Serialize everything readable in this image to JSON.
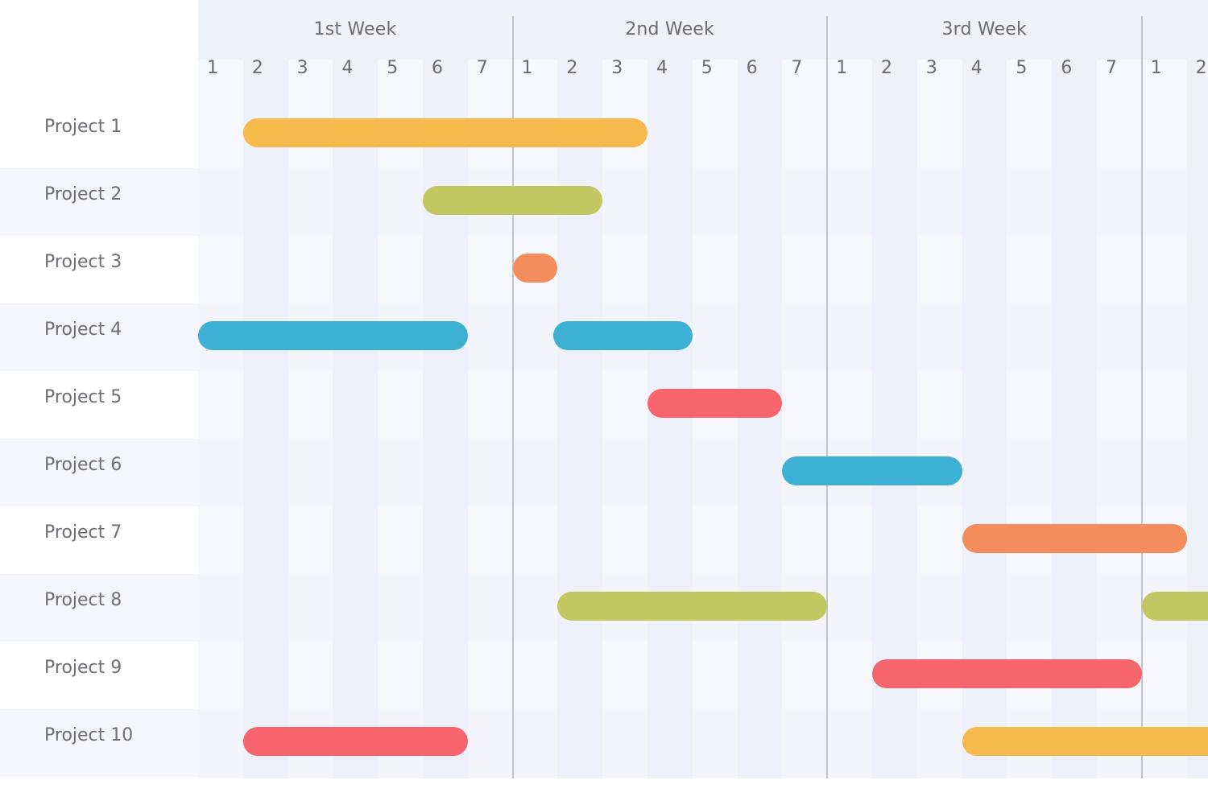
{
  "chart_data": {
    "type": "gantt",
    "title": "",
    "weeks": [
      "1st Week",
      "2nd Week",
      "3rd Week",
      ""
    ],
    "days": [
      "1",
      "2",
      "3",
      "4",
      "5",
      "6",
      "7",
      "1",
      "2",
      "3",
      "4",
      "5",
      "6",
      "7",
      "1",
      "2",
      "3",
      "4",
      "5",
      "6",
      "7",
      "1",
      "2"
    ],
    "projects": [
      "Project 1",
      "Project 2",
      "Project 3",
      "Project 4",
      "Project 5",
      "Project 6",
      "Project 7",
      "Project 8",
      "Project 9",
      "Project 10"
    ],
    "bars": [
      {
        "project": "Project 1",
        "start": 1,
        "end": 10,
        "color": "#f5b94c"
      },
      {
        "project": "Project 2",
        "start": 5,
        "end": 9,
        "color": "#c1c862"
      },
      {
        "project": "Project 3",
        "start": 7,
        "end": 8,
        "color": "#f48c5c"
      },
      {
        "project": "Project 4",
        "start": 0,
        "end": 6,
        "color": "#3cb1d3"
      },
      {
        "project": "Project 4",
        "start": 7.9,
        "end": 11,
        "color": "#3cb1d3"
      },
      {
        "project": "Project 5",
        "start": 10,
        "end": 13,
        "color": "#f6646e"
      },
      {
        "project": "Project 6",
        "start": 13,
        "end": 17,
        "color": "#3cb1d3"
      },
      {
        "project": "Project 7",
        "start": 17,
        "end": 22,
        "color": "#f48c5c"
      },
      {
        "project": "Project 8",
        "start": 8,
        "end": 14,
        "color": "#c1c862"
      },
      {
        "project": "Project 8",
        "start": 21,
        "end": 24,
        "color": "#c1c862"
      },
      {
        "project": "Project 9",
        "start": 15,
        "end": 21,
        "color": "#f6646e"
      },
      {
        "project": "Project 10",
        "start": 1,
        "end": 6,
        "color": "#f6646e"
      },
      {
        "project": "Project 10",
        "start": 17,
        "end": 24,
        "color": "#f5b94c"
      }
    ],
    "xlabel": "",
    "ylabel": "",
    "grid": true
  },
  "colors": {
    "yellow": "#f5b94c",
    "olive": "#c1c862",
    "orange": "#f48c5c",
    "blue": "#3cb1d3",
    "red": "#f6646e"
  }
}
